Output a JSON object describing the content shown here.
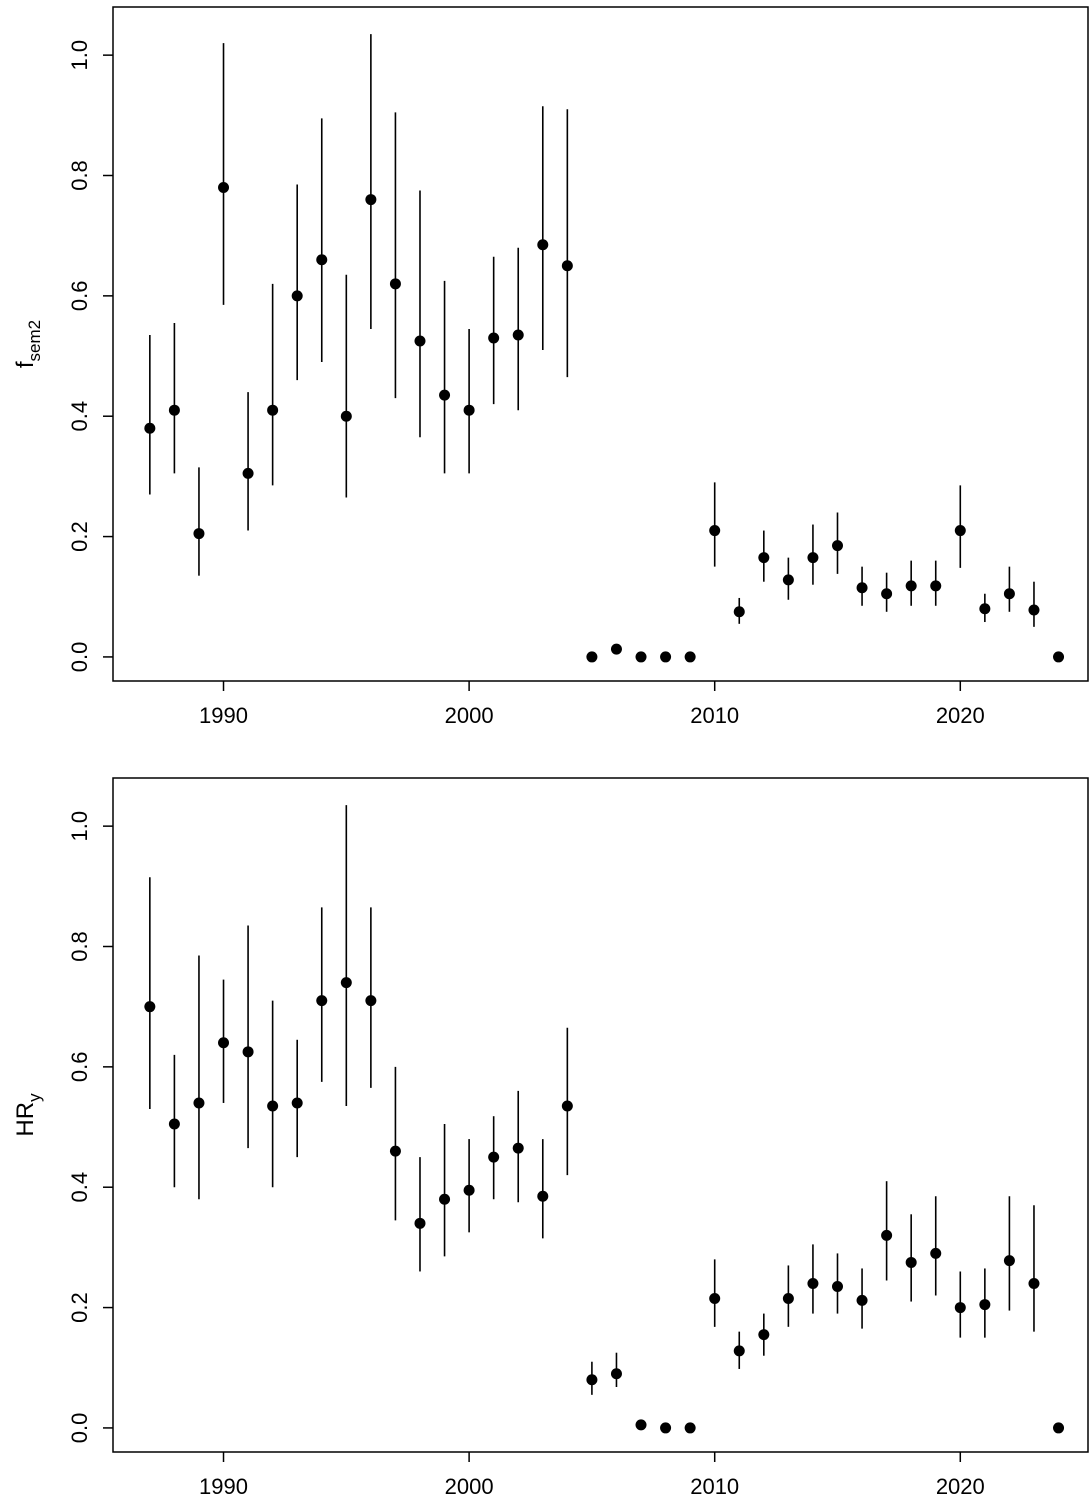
{
  "colors": {
    "point": "#000000",
    "line": "#000000",
    "background": "#ffffff"
  },
  "chart_data": [
    {
      "type": "scatter",
      "title": "",
      "xlabel": "",
      "ylabel_main": "f",
      "ylabel_sub": "sem2",
      "xlim": [
        1985.5,
        2025.2
      ],
      "ylim": [
        -0.04,
        1.08
      ],
      "xticks": [
        1990,
        2000,
        2010,
        2020
      ],
      "yticks": [
        0.0,
        0.2,
        0.4,
        0.6,
        0.8,
        1.0
      ],
      "ytick_labels": [
        "0.0",
        "0.2",
        "0.4",
        "0.6",
        "0.8",
        "1.0"
      ],
      "grid": false,
      "series": [
        {
          "x": [
            1987,
            1988,
            1989,
            1990,
            1991,
            1992,
            1993,
            1994,
            1995,
            1996,
            1997,
            1998,
            1999,
            2000,
            2001,
            2002,
            2003,
            2004,
            2005,
            2006,
            2007,
            2008,
            2009,
            2010,
            2011,
            2012,
            2013,
            2014,
            2015,
            2016,
            2017,
            2018,
            2019,
            2020,
            2021,
            2022,
            2023,
            2024
          ],
          "y": [
            0.38,
            0.41,
            0.205,
            0.78,
            0.305,
            0.41,
            0.6,
            0.66,
            0.4,
            0.76,
            0.62,
            0.525,
            0.435,
            0.41,
            0.53,
            0.535,
            0.685,
            0.65,
            0.0,
            0.013,
            0.0,
            0.0,
            0.0,
            0.21,
            0.075,
            0.165,
            0.128,
            0.165,
            0.185,
            0.115,
            0.105,
            0.118,
            0.118,
            0.21,
            0.08,
            0.105,
            0.078,
            0.0
          ],
          "lower": [
            0.27,
            0.305,
            0.135,
            0.585,
            0.21,
            0.285,
            0.46,
            0.49,
            0.265,
            0.545,
            0.43,
            0.365,
            0.305,
            0.305,
            0.42,
            0.41,
            0.51,
            0.465,
            0.0,
            0.013,
            0.0,
            0.0,
            0.0,
            0.15,
            0.055,
            0.125,
            0.095,
            0.12,
            0.138,
            0.085,
            0.075,
            0.085,
            0.085,
            0.148,
            0.058,
            0.075,
            0.05,
            0.0
          ],
          "upper": [
            0.535,
            0.555,
            0.315,
            1.02,
            0.44,
            0.62,
            0.785,
            0.895,
            0.635,
            1.035,
            0.905,
            0.775,
            0.625,
            0.545,
            0.665,
            0.68,
            0.915,
            0.91,
            0.0,
            0.013,
            0.0,
            0.0,
            0.0,
            0.29,
            0.098,
            0.21,
            0.165,
            0.22,
            0.24,
            0.15,
            0.14,
            0.16,
            0.16,
            0.285,
            0.105,
            0.15,
            0.125,
            0.0
          ]
        }
      ]
    },
    {
      "type": "scatter",
      "title": "",
      "xlabel": "",
      "ylabel_main": "HR",
      "ylabel_sub": "y",
      "xlim": [
        1985.5,
        2025.2
      ],
      "ylim": [
        -0.04,
        1.08
      ],
      "xticks": [
        1990,
        2000,
        2010,
        2020
      ],
      "yticks": [
        0.0,
        0.2,
        0.4,
        0.6,
        0.8,
        1.0
      ],
      "ytick_labels": [
        "0.0",
        "0.2",
        "0.4",
        "0.6",
        "0.8",
        "1.0"
      ],
      "grid": false,
      "series": [
        {
          "x": [
            1987,
            1988,
            1989,
            1990,
            1991,
            1992,
            1993,
            1994,
            1995,
            1996,
            1997,
            1998,
            1999,
            2000,
            2001,
            2002,
            2003,
            2004,
            2005,
            2006,
            2007,
            2008,
            2009,
            2010,
            2011,
            2012,
            2013,
            2014,
            2015,
            2016,
            2017,
            2018,
            2019,
            2020,
            2021,
            2022,
            2023,
            2024
          ],
          "y": [
            0.7,
            0.505,
            0.54,
            0.64,
            0.625,
            0.535,
            0.54,
            0.71,
            0.74,
            0.71,
            0.46,
            0.34,
            0.38,
            0.395,
            0.45,
            0.465,
            0.385,
            0.535,
            0.08,
            0.09,
            0.005,
            0.0,
            0.0,
            0.215,
            0.128,
            0.155,
            0.215,
            0.24,
            0.235,
            0.212,
            0.32,
            0.275,
            0.29,
            0.2,
            0.205,
            0.278,
            0.24,
            0.0
          ],
          "lower": [
            0.53,
            0.4,
            0.38,
            0.54,
            0.465,
            0.4,
            0.45,
            0.575,
            0.535,
            0.565,
            0.345,
            0.26,
            0.285,
            0.325,
            0.38,
            0.375,
            0.315,
            0.42,
            0.055,
            0.068,
            0.005,
            0.0,
            0.0,
            0.168,
            0.098,
            0.12,
            0.168,
            0.19,
            0.19,
            0.165,
            0.245,
            0.21,
            0.22,
            0.15,
            0.15,
            0.195,
            0.16,
            0.0
          ],
          "upper": [
            0.915,
            0.62,
            0.785,
            0.745,
            0.835,
            0.71,
            0.645,
            0.865,
            1.035,
            0.865,
            0.6,
            0.45,
            0.505,
            0.48,
            0.518,
            0.56,
            0.48,
            0.665,
            0.11,
            0.125,
            0.005,
            0.0,
            0.0,
            0.28,
            0.16,
            0.19,
            0.27,
            0.305,
            0.29,
            0.265,
            0.41,
            0.355,
            0.385,
            0.26,
            0.265,
            0.385,
            0.37,
            0.0
          ]
        }
      ]
    }
  ]
}
